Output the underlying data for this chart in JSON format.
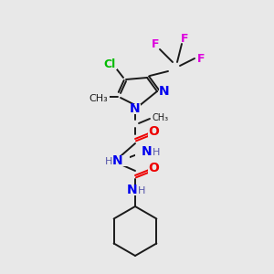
{
  "bg_color": "#e8e8e8",
  "atom_colors": {
    "C": "#1a1a1a",
    "N": "#0000ee",
    "O": "#ee0000",
    "F": "#dd00dd",
    "Cl": "#00bb00",
    "H": "#5555aa",
    "bond": "#1a1a1a"
  },
  "figsize": [
    3.0,
    3.0
  ],
  "dpi": 100
}
